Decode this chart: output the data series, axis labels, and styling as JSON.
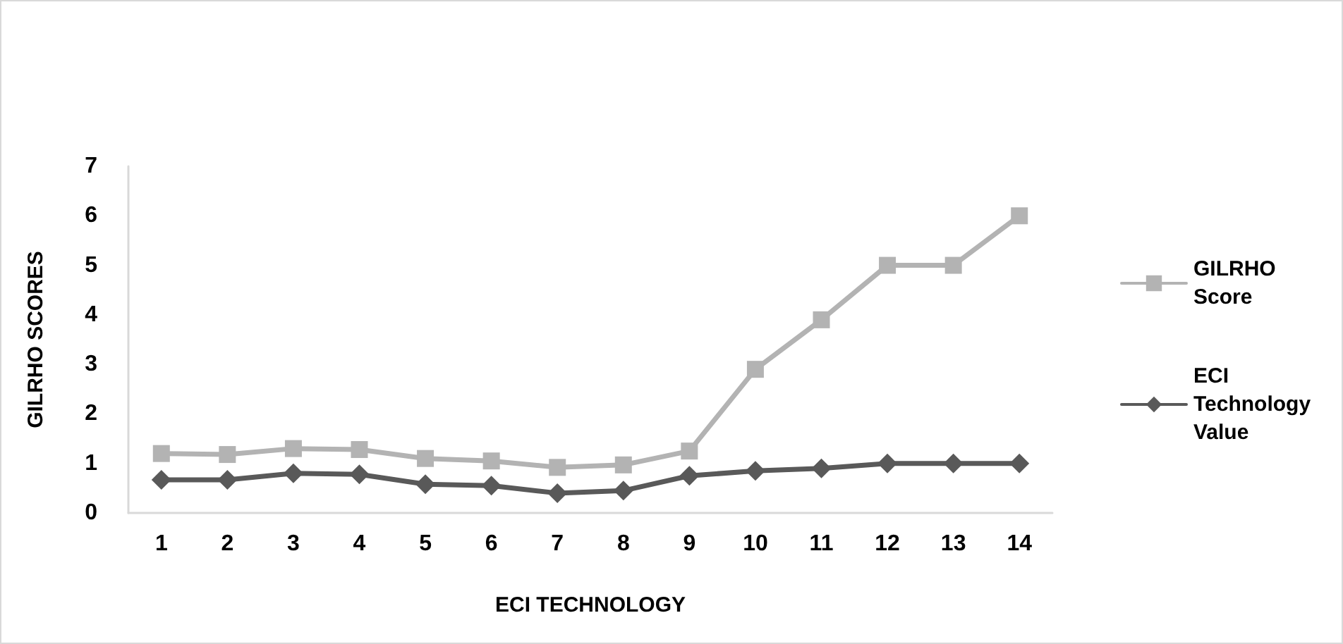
{
  "chart_data": {
    "type": "line",
    "xlabel": "ECI TECHNOLOGY",
    "ylabel": "GILRHO SCORES",
    "categories": [
      "1",
      "2",
      "3",
      "4",
      "5",
      "6",
      "7",
      "8",
      "9",
      "10",
      "11",
      "12",
      "13",
      "14"
    ],
    "series": [
      {
        "name": "GILRHO Score",
        "color": "#b3b3b3",
        "marker": "square",
        "values": [
          1.2,
          1.18,
          1.3,
          1.28,
          1.1,
          1.05,
          0.92,
          0.97,
          1.25,
          2.9,
          3.9,
          5,
          5,
          6
        ]
      },
      {
        "name": "ECI Technology Value",
        "color": "#595959",
        "marker": "diamond",
        "values": [
          0.67,
          0.67,
          0.8,
          0.78,
          0.58,
          0.55,
          0.4,
          0.45,
          0.75,
          0.85,
          0.9,
          1,
          1,
          1
        ]
      }
    ],
    "ylim": [
      0,
      7
    ],
    "yticks": [
      0,
      1,
      2,
      3,
      4,
      5,
      6,
      7
    ],
    "grid": false,
    "legend": "right"
  }
}
